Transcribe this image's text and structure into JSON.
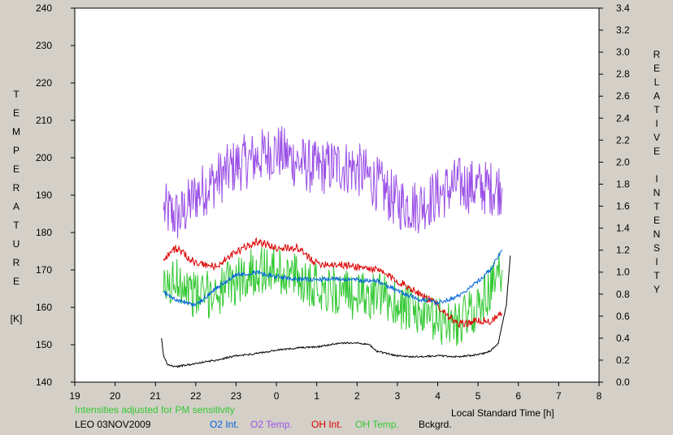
{
  "chart_data": {
    "type": "line",
    "title": "",
    "xlabel": "Local Standard Time [h]",
    "ylabel_left": [
      "T",
      "E",
      "M",
      "P",
      "E",
      "R",
      "A",
      "T",
      "U",
      "R",
      "E",
      "",
      "[K]"
    ],
    "ylabel_right": [
      "R",
      "E",
      "L",
      "A",
      "T",
      "I",
      "V",
      "E",
      "",
      "I",
      "N",
      "T",
      "E",
      "N",
      "S",
      "I",
      "T",
      "Y"
    ],
    "x_tick_labels": [
      "19",
      "20",
      "21",
      "22",
      "23",
      "0",
      "1",
      "2",
      "3",
      "4",
      "5",
      "6",
      "7",
      "8"
    ],
    "xlim": [
      19,
      32
    ],
    "ylim_left": [
      140,
      240
    ],
    "ylim_right": [
      0.0,
      3.4
    ],
    "y_left_ticks": [
      140,
      150,
      160,
      170,
      180,
      190,
      200,
      210,
      220,
      230,
      240
    ],
    "y_right_tick_labels": [
      "0.0",
      "0.2",
      "0.4",
      "0.6",
      "0.8",
      "1.0",
      "1.2",
      "1.4",
      "1.6",
      "1.8",
      "2.0",
      "2.2",
      "2.4",
      "2.6",
      "2.8",
      "3.0",
      "3.2",
      "3.4"
    ],
    "grid": false,
    "note": "Intensities adjusted for PM sensitivity",
    "station_date": "LEO 03NOV2009",
    "legend": [
      {
        "label": "O2 Int.",
        "color": "#0064dc"
      },
      {
        "label": "O2 Temp.",
        "color": "#9b50e6"
      },
      {
        "label": "OH Int.",
        "color": "#dc0000"
      },
      {
        "label": "OH Temp.",
        "color": "#32c832"
      },
      {
        "label": "Bckgrd.",
        "color": "#000000"
      }
    ],
    "series": [
      {
        "name": "O2 Temp.",
        "axis": "left",
        "color": "#9b50e6",
        "noise": 7.5,
        "x": [
          21.2,
          21.6,
          22.0,
          22.5,
          23.0,
          23.5,
          24.0,
          24.5,
          25.0,
          25.5,
          26.0,
          26.5,
          27.0,
          27.5,
          28.0,
          28.5,
          29.0,
          29.6
        ],
        "values": [
          186,
          184,
          190,
          194,
          198,
          200,
          202,
          199,
          197,
          198,
          197,
          193,
          188,
          187,
          190,
          193,
          192,
          192
        ]
      },
      {
        "name": "OH Temp.",
        "axis": "left",
        "color": "#32c832",
        "noise": 6.5,
        "x": [
          21.2,
          21.6,
          22.0,
          22.5,
          23.0,
          23.5,
          24.0,
          24.5,
          25.0,
          25.5,
          26.0,
          26.5,
          27.0,
          27.5,
          28.0,
          28.5,
          29.0,
          29.6
        ],
        "values": [
          164,
          168,
          163,
          164,
          167,
          170,
          170,
          168,
          166,
          164,
          163,
          163,
          161,
          158,
          156,
          156,
          160,
          170
        ]
      },
      {
        "name": "OH Int.",
        "axis": "right",
        "color": "#dc0000",
        "noise": 0.035,
        "x": [
          21.2,
          21.5,
          22.0,
          22.5,
          23.0,
          23.5,
          24.0,
          24.5,
          25.0,
          25.5,
          26.0,
          26.5,
          27.0,
          27.5,
          28.0,
          28.5,
          29.0,
          29.3,
          29.6
        ],
        "values": [
          1.12,
          1.22,
          1.08,
          1.05,
          1.18,
          1.28,
          1.22,
          1.22,
          1.08,
          1.07,
          1.05,
          1.02,
          0.92,
          0.82,
          0.7,
          0.52,
          0.56,
          0.55,
          0.62
        ]
      },
      {
        "name": "O2 Int.",
        "axis": "right",
        "color": "#0064dc",
        "noise": 0.02,
        "x": [
          21.2,
          21.5,
          22.0,
          22.5,
          23.0,
          23.5,
          24.0,
          24.5,
          25.0,
          25.5,
          26.0,
          26.5,
          27.0,
          27.5,
          28.0,
          28.5,
          29.0,
          29.3,
          29.6
        ],
        "values": [
          0.82,
          0.75,
          0.7,
          0.85,
          0.98,
          1.0,
          0.96,
          0.94,
          0.93,
          0.94,
          0.93,
          0.92,
          0.83,
          0.76,
          0.72,
          0.78,
          0.92,
          1.02,
          1.2
        ]
      },
      {
        "name": "Bckgrd.",
        "axis": "right",
        "color": "#000000",
        "noise": 0.008,
        "x": [
          21.15,
          21.2,
          21.3,
          21.5,
          22.0,
          22.5,
          23.0,
          23.5,
          24.0,
          24.5,
          25.0,
          25.5,
          26.0,
          26.3,
          26.5,
          27.0,
          27.5,
          28.0,
          28.5,
          29.0,
          29.3,
          29.5,
          29.7,
          29.8
        ],
        "values": [
          0.4,
          0.24,
          0.16,
          0.14,
          0.17,
          0.2,
          0.24,
          0.26,
          0.29,
          0.31,
          0.32,
          0.35,
          0.36,
          0.34,
          0.28,
          0.24,
          0.23,
          0.24,
          0.23,
          0.25,
          0.28,
          0.35,
          0.7,
          1.15
        ]
      }
    ]
  }
}
